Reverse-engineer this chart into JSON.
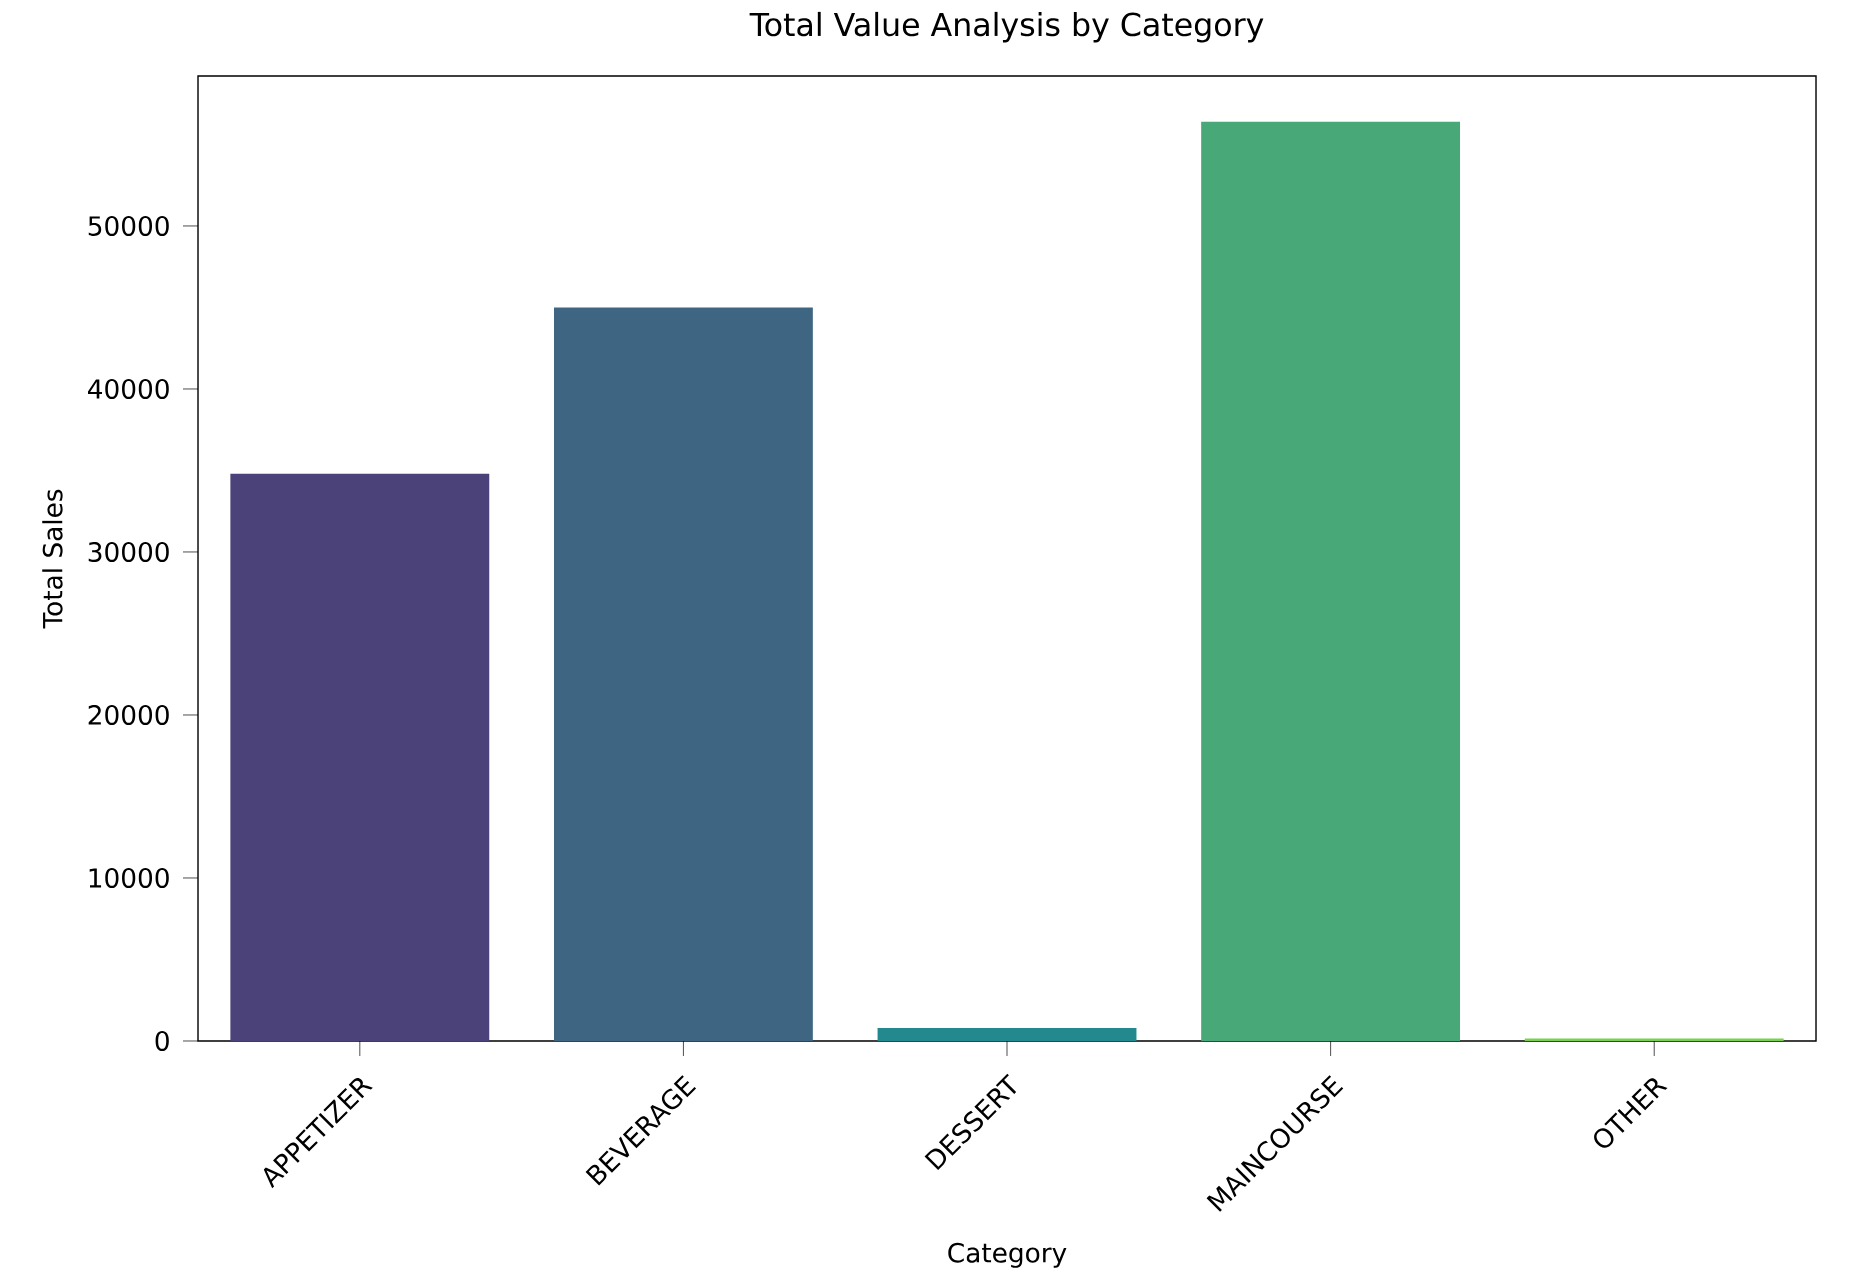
{
  "chart_data": {
    "type": "bar",
    "title": "Total Value Analysis by Category",
    "xlabel": "Category",
    "ylabel": "Total Sales",
    "categories": [
      "APPETIZER",
      "BEVERAGE",
      "DESSERT",
      "MAINCOURSE",
      "OTHER"
    ],
    "values": [
      34800,
      45000,
      800,
      56400,
      150
    ],
    "colors": [
      "#4a4278",
      "#3e6683",
      "#23898e",
      "#48a878",
      "#7ad151"
    ],
    "ylim": [
      0,
      59200
    ],
    "yticks": [
      0,
      10000,
      20000,
      30000,
      40000,
      50000
    ],
    "grid": false
  }
}
